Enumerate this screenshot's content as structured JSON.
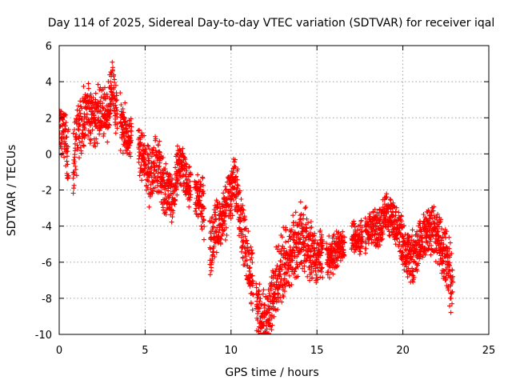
{
  "chart_data": {
    "type": "scatter",
    "title": "Day 114 of 2025, Sidereal Day-to-day VTEC variation (SDTVAR) for receiver iqal",
    "xlabel": "GPS time / hours",
    "ylabel": "SDTVAR / TECUs",
    "xlim": [
      0,
      25
    ],
    "ylim": [
      -10,
      6
    ],
    "xticks": [
      "0",
      "5",
      "10",
      "15",
      "20",
      "25"
    ],
    "yticks": [
      "6",
      "4",
      "2",
      "0",
      "-2",
      "-4",
      "-6",
      "-8",
      "-10"
    ],
    "grid": true,
    "marker": "+",
    "color": "#ff0000",
    "series": [
      {
        "name": "SDTVAR",
        "trend_x": [
          0.0,
          0.2,
          0.5,
          0.8,
          1.2,
          1.6,
          2.0,
          2.4,
          2.8,
          3.1,
          3.4,
          3.7,
          4.1,
          4.5,
          4.8,
          5.0,
          5.3,
          5.6,
          5.9,
          6.2,
          6.6,
          7.0,
          7.4,
          7.8,
          8.2,
          8.6,
          8.8,
          9.1,
          9.4,
          9.7,
          10.0,
          10.2,
          10.5,
          10.8,
          11.1,
          11.4,
          11.7,
          12.0,
          12.3,
          12.6,
          13.0,
          13.4,
          13.8,
          14.2,
          14.6,
          15.0,
          15.4,
          15.8,
          16.2,
          16.6,
          17.0,
          17.4,
          17.8,
          18.2,
          18.6,
          19.0,
          19.4,
          19.8,
          20.2,
          20.6,
          21.0,
          21.4,
          21.8,
          22.2,
          22.6,
          22.9
        ],
        "trend_y": [
          1.5,
          1.2,
          0.3,
          -0.5,
          1.5,
          2.3,
          1.8,
          2.5,
          2.2,
          4.0,
          2.0,
          1.5,
          0.8,
          0.5,
          -0.2,
          -0.5,
          -1.5,
          -0.5,
          -1.0,
          -2.0,
          -2.5,
          -0.3,
          -1.5,
          -2.0,
          -2.5,
          -3.5,
          -5.5,
          -4.2,
          -3.5,
          -3.0,
          -2.5,
          -1.5,
          -3.0,
          -5.0,
          -6.5,
          -8.0,
          -9.0,
          -9.3,
          -8.5,
          -7.0,
          -6.0,
          -5.5,
          -5.0,
          -4.5,
          -5.5,
          -5.8,
          -5.5,
          -5.8,
          -5.2,
          -5.0,
          -4.5,
          -4.8,
          -4.5,
          -4.0,
          -4.2,
          -3.2,
          -3.5,
          -4.5,
          -5.5,
          -5.8,
          -4.8,
          -4.5,
          -4.2,
          -5.0,
          -6.0,
          -7.5
        ],
        "spread": [
          0.9,
          1.2,
          1.5,
          1.6,
          1.3,
          1.4,
          1.2,
          1.3,
          1.2,
          1.1,
          1.3,
          1.2,
          1.0,
          1.0,
          1.1,
          1.2,
          1.3,
          1.2,
          1.3,
          1.2,
          1.1,
          1.0,
          1.0,
          0.9,
          1.1,
          1.4,
          1.2,
          1.3,
          1.3,
          1.3,
          1.2,
          1.2,
          1.3,
          1.4,
          1.5,
          1.4,
          1.3,
          1.2,
          1.4,
          1.5,
          1.6,
          1.5,
          1.5,
          1.6,
          1.5,
          1.2,
          1.0,
          0.9,
          0.8,
          0.7,
          0.7,
          0.8,
          0.8,
          0.8,
          0.9,
          0.9,
          0.9,
          1.0,
          1.1,
          1.2,
          1.0,
          1.0,
          1.1,
          1.3,
          1.4,
          1.5
        ],
        "gaps": [
          [
            0.55,
            0.8
          ],
          [
            3.4,
            3.55
          ],
          [
            4.2,
            4.6
          ],
          [
            7.65,
            7.9
          ],
          [
            8.45,
            8.75
          ],
          [
            11.3,
            11.45
          ],
          [
            15.35,
            15.55
          ],
          [
            16.6,
            17.0
          ],
          [
            17.65,
            17.8
          ],
          [
            22.95,
            25.0
          ]
        ]
      }
    ]
  }
}
